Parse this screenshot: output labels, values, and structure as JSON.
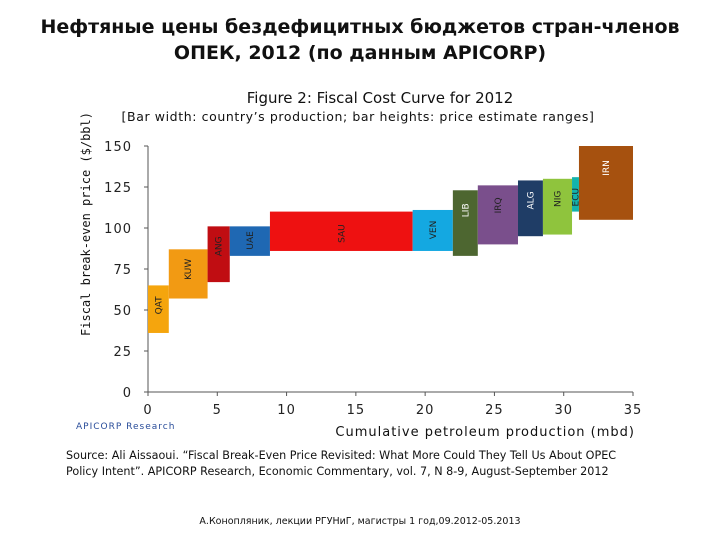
{
  "slide": {
    "title_line1": "Нефтяные цены бездефицитных бюджетов стран-членов",
    "title_line2": "ОПЕК, 2012 (по данным APICORP)"
  },
  "figure": {
    "title": "Figure 2: Fiscal Cost Curve for 2012",
    "subtitle": "[Bar width: country’s production; bar heights: price estimate ranges]",
    "brand": "APICORP Research"
  },
  "source": {
    "line1": "Source: Ali Aissaoui. “Fiscal Break-Even Price Revisited: What More Could They Tell Us About OPEC",
    "line2": "Policy Intent”. APICORP Research, Economic Commentary, vol. 7, N 8-9, August-September 2012"
  },
  "footer": {
    "text": "А.Конопляник, лекции РГУНиГ, магистры 1 год,09.2012-05.2013"
  },
  "chart_data": {
    "type": "bar",
    "title": "Figure 2: Fiscal Cost Curve for 2012",
    "subtitle": "[Bar width: country’s production; bar heights: price estimate ranges]",
    "xlabel": "Cumulative petroleum production (mbd)",
    "ylabel": "Fiscal break-even price ($/bbl)",
    "xlim": [
      0,
      35
    ],
    "ylim": [
      0,
      150
    ],
    "xticks": [
      0,
      5,
      10,
      15,
      20,
      25,
      30,
      35
    ],
    "yticks": [
      0,
      25,
      50,
      75,
      100,
      125,
      150
    ],
    "grid": false,
    "bars": [
      {
        "label": "QAT",
        "x_start": 0.0,
        "x_end": 1.5,
        "low": 36,
        "high": 65,
        "color": "#f5a50d"
      },
      {
        "label": "KUW",
        "x_start": 1.5,
        "x_end": 4.3,
        "low": 57,
        "high": 87,
        "color": "#f29a13"
      },
      {
        "label": "ANG",
        "x_start": 4.3,
        "x_end": 5.9,
        "low": 67,
        "high": 101,
        "color": "#c00d12"
      },
      {
        "label": "UAE",
        "x_start": 5.9,
        "x_end": 8.8,
        "low": 83,
        "high": 101,
        "color": "#1f68b3"
      },
      {
        "label": "SAU",
        "x_start": 8.8,
        "x_end": 19.1,
        "low": 86,
        "high": 110,
        "color": "#ee1111"
      },
      {
        "label": "VEN",
        "x_start": 19.1,
        "x_end": 22.0,
        "low": 86,
        "high": 111,
        "color": "#14a8e1"
      },
      {
        "label": "LIB",
        "x_start": 22.0,
        "x_end": 23.8,
        "low": 83,
        "high": 123,
        "color": "#4d6630"
      },
      {
        "label": "IRQ",
        "x_start": 23.8,
        "x_end": 26.7,
        "low": 90,
        "high": 126,
        "color": "#7a4f8c"
      },
      {
        "label": "ALG",
        "x_start": 26.7,
        "x_end": 28.5,
        "low": 95,
        "high": 129,
        "color": "#1f3d66"
      },
      {
        "label": "NIG",
        "x_start": 28.5,
        "x_end": 30.6,
        "low": 96,
        "high": 130,
        "color": "#8fc43d"
      },
      {
        "label": "ECU",
        "x_start": 30.6,
        "x_end": 31.1,
        "low": 110,
        "high": 131,
        "color": "#13b3ad"
      },
      {
        "label": "IRN",
        "x_start": 31.1,
        "x_end": 35.0,
        "low": 105,
        "high": 150,
        "color": "#a6510f"
      }
    ]
  }
}
